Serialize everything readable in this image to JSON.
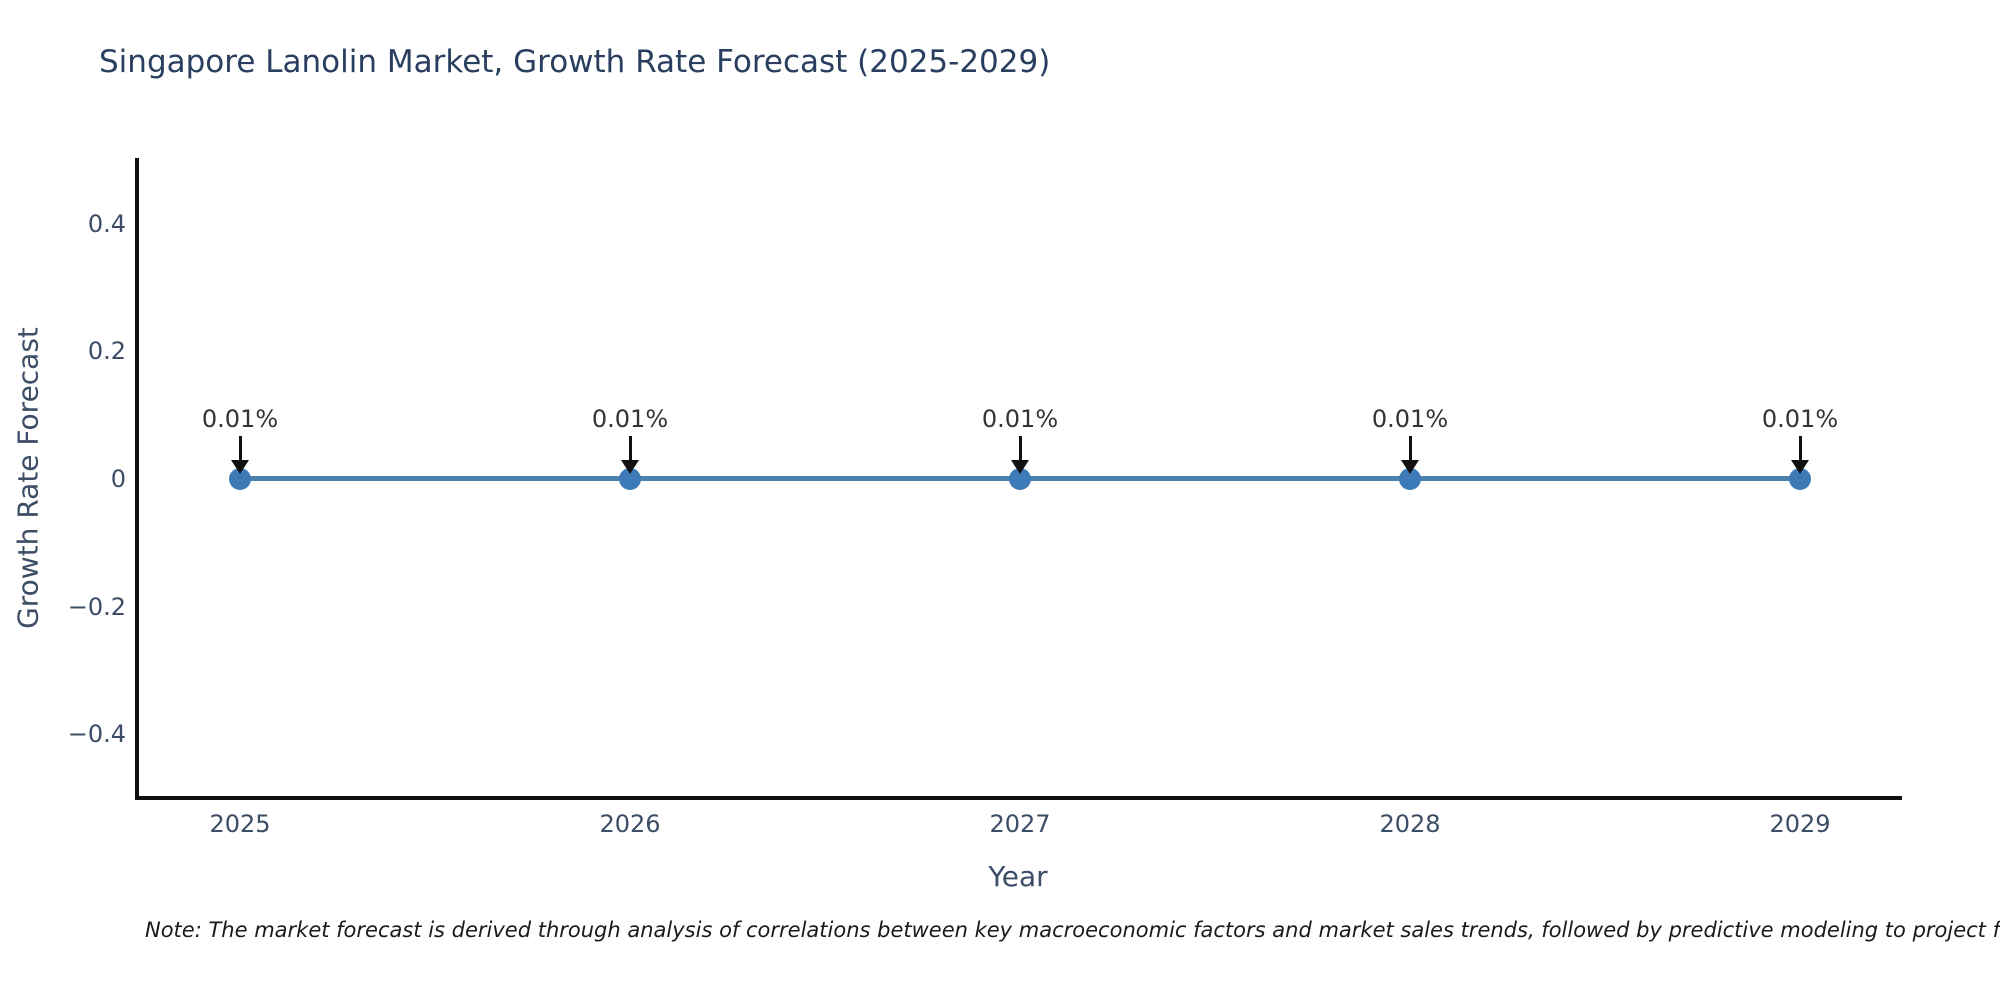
{
  "chart_data": {
    "type": "line",
    "title": "Singapore Lanolin Market, Growth Rate Forecast (2025-2029)",
    "xlabel": "Year",
    "ylabel": "Growth Rate Forecast",
    "categories": [
      "2025",
      "2026",
      "2027",
      "2028",
      "2029"
    ],
    "series": [
      {
        "name": "Growth Rate Forecast",
        "unit": "%",
        "values_percent": [
          0.01,
          0.01,
          0.01,
          0.01,
          0.01
        ]
      }
    ],
    "point_labels": [
      "0.01%",
      "0.01%",
      "0.01%",
      "0.01%",
      "0.01%"
    ],
    "ylim": [
      -0.5,
      0.5
    ],
    "yticks": [
      {
        "value": 0.4,
        "label": "0.4"
      },
      {
        "value": 0.2,
        "label": "0.2"
      },
      {
        "value": 0,
        "label": "0"
      },
      {
        "value": -0.2,
        "label": "−0.2"
      },
      {
        "value": -0.4,
        "label": "−0.4"
      }
    ],
    "grid": false,
    "legend": "none",
    "colors": {
      "line": "#4d80aa",
      "marker": "#3d7ab8",
      "axis": "#111111",
      "tick_text": "#3c4d66",
      "title_text": "#2a3f5f",
      "annotation_text": "#333333",
      "arrow": "#111111",
      "note_text": "#1a1a1a",
      "background": "#ffffff"
    }
  },
  "note": {
    "text": "Note: The market forecast is derived through analysis of correlations between key macroeconomic factors and market sales trends, followed by predictive modeling to project future sales"
  }
}
